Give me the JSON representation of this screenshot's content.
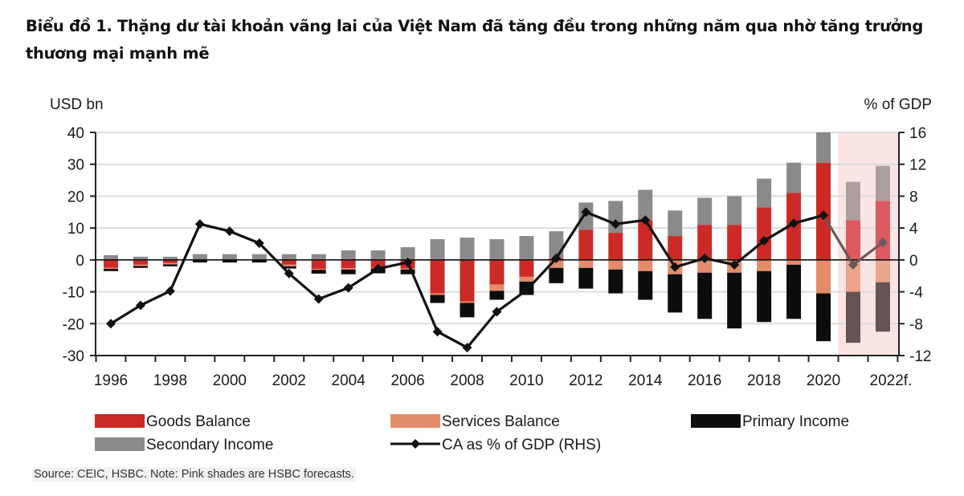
{
  "title": "Biểu đồ 1. Thặng dư tài khoản vãng lai của Việt Nam đã tăng đều trong những năm qua nhờ tăng trưởng thương mại mạnh mẽ",
  "source": "Source: CEIC, HSBC. Note: Pink shades are HSBC forecasts.",
  "chart_data": {
    "type": "bar",
    "stacked": true,
    "title": "Biểu đồ 1. Thặng dư tài khoản vãng lai của Việt Nam đã tăng đều trong những năm qua nhờ tăng trưởng thương mại mạnh mẽ",
    "ylabel": "USD bn",
    "y2label": "% of GDP",
    "ylim": [
      -30,
      40
    ],
    "y2lim": [
      -12,
      16
    ],
    "yticks": [
      -30,
      -20,
      -10,
      0,
      10,
      20,
      30,
      40
    ],
    "y2ticks": [
      -12,
      -8,
      -4,
      0,
      4,
      8,
      12,
      16
    ],
    "grid": true,
    "x": [
      1996,
      1997,
      1998,
      1999,
      2000,
      2001,
      2002,
      2003,
      2004,
      2005,
      2006,
      2007,
      2008,
      2009,
      2010,
      2011,
      2012,
      2013,
      2014,
      2015,
      2016,
      2017,
      2018,
      2019,
      2020,
      2021,
      2022
    ],
    "xtick_labels": [
      "1996",
      "1998",
      "2000",
      "2002",
      "2004",
      "2006",
      "2008",
      "2010",
      "2012",
      "2014",
      "2016",
      "2018",
      "2020",
      "2022f."
    ],
    "forecast_years": [
      2021,
      2022
    ],
    "forecast_shading": "#fbe4e4",
    "series": [
      {
        "name": "Goods Balance",
        "color": "#cc2a26",
        "forecast_color": "#dc5a60",
        "axis": "left",
        "kind": "bar",
        "values": [
          -2.5,
          -1.5,
          -1.0,
          0,
          0,
          0,
          -1.5,
          -2.8,
          -2.6,
          -2.5,
          -2.7,
          -10.5,
          -13,
          -7.7,
          -5.3,
          0.5,
          9.5,
          8.5,
          12.5,
          7.5,
          11,
          11,
          16.5,
          21,
          30.5,
          12.5,
          18.5
        ]
      },
      {
        "name": "Services Balance",
        "color": "#e38c6a",
        "forecast_color": "#eca48c",
        "axis": "left",
        "kind": "bar",
        "values": [
          -0.3,
          -0.4,
          -0.4,
          0,
          0,
          0,
          -0.5,
          -0.3,
          -0.4,
          -0.2,
          -0.3,
          -0.5,
          -0.5,
          -2.0,
          -1.5,
          -2.5,
          -2.5,
          -3.0,
          -3.5,
          -4.5,
          -4.0,
          -4.0,
          -3.5,
          -1.5,
          -10.5,
          -10,
          -7
        ]
      },
      {
        "name": "Primary Income",
        "color": "#0d0d0d",
        "forecast_color": "#665454",
        "axis": "left",
        "kind": "bar",
        "values": [
          -0.7,
          -0.6,
          -0.6,
          -0.8,
          -0.8,
          -0.8,
          -0.7,
          -1.2,
          -1.5,
          -1.5,
          -1.5,
          -2.5,
          -4.5,
          -2.8,
          -4.2,
          -4.8,
          -6.5,
          -7.5,
          -9,
          -12,
          -14.5,
          -17.5,
          -16,
          -17,
          -15,
          -16,
          -15.5
        ]
      },
      {
        "name": "Secondary Income",
        "color": "#8a8a8a",
        "forecast_color": "#ae9f9f",
        "axis": "left",
        "kind": "bar",
        "values": [
          1.5,
          1.0,
          1.0,
          1.8,
          1.8,
          1.8,
          1.8,
          1.8,
          3.0,
          3.0,
          4.0,
          6.5,
          7.0,
          6.5,
          7.5,
          8.5,
          8.5,
          10,
          9.5,
          8.0,
          8.5,
          9.0,
          9.0,
          9.5,
          10,
          12,
          11
        ]
      },
      {
        "name": "CA as % of GDP (RHS)",
        "color": "#111111",
        "forecast_color": "#6b5858",
        "axis": "right",
        "kind": "line",
        "marker": "diamond",
        "values": [
          -8.0,
          -5.7,
          -3.9,
          4.5,
          3.6,
          2.1,
          -1.7,
          -4.9,
          -3.5,
          -1.1,
          -0.3,
          -9.0,
          -11.0,
          -6.5,
          -3.8,
          0.2,
          6.0,
          4.5,
          5.0,
          -0.9,
          0.2,
          -0.6,
          2.4,
          4.6,
          5.6,
          -0.6,
          2.2
        ]
      }
    ],
    "legend": {
      "placement": "bottom",
      "entries": [
        "Goods Balance",
        "Services Balance",
        "Primary Income",
        "Secondary Income",
        "CA as % of GDP (RHS)"
      ]
    }
  }
}
